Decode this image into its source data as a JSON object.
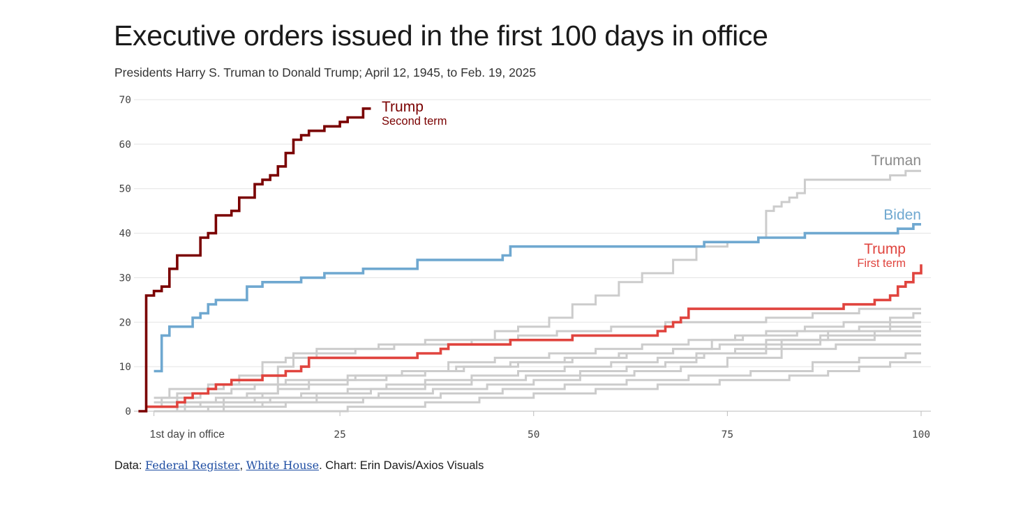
{
  "header": {
    "title": "Executive orders issued in the first 100 days in office",
    "subtitle": "Presidents Harry S. Truman to Donald Trump; April 12, 1945, to Feb. 19, 2025"
  },
  "source": {
    "prefix": "Data: ",
    "link1": "Federal Register",
    "sep": ", ",
    "link2": "White House",
    "suffix": ". Chart: Erin Davis/Axios Visuals"
  },
  "colors": {
    "grid": "#e3e3e3",
    "gray_series": "#cccccc",
    "trump2": "#7a0000",
    "biden": "#6fa8d0",
    "trump1": "#e0443e",
    "truman_label": "#8a8a8a"
  },
  "chart_data": {
    "type": "line",
    "step": true,
    "xlabel": "",
    "ylabel": "",
    "xlim": [
      0,
      100
    ],
    "ylim": [
      0,
      70
    ],
    "x_ticks": [
      {
        "value": 1,
        "label": "1st day in office"
      },
      {
        "value": 25,
        "label": "25"
      },
      {
        "value": 50,
        "label": "50"
      },
      {
        "value": 75,
        "label": "75"
      },
      {
        "value": 100,
        "label": "100"
      }
    ],
    "y_ticks": [
      0,
      10,
      20,
      30,
      40,
      50,
      60,
      70
    ],
    "grid": true,
    "series": [
      {
        "name": "Truman",
        "label_lines": [
          "Truman"
        ],
        "highlight": false,
        "label_color": "#8a8a8a",
        "points": [
          [
            1,
            0
          ],
          [
            4,
            2
          ],
          [
            10,
            3
          ],
          [
            15,
            4
          ],
          [
            17,
            10
          ],
          [
            19,
            13
          ],
          [
            22,
            14
          ],
          [
            28,
            14
          ],
          [
            30,
            15
          ],
          [
            38,
            15
          ],
          [
            42,
            16
          ],
          [
            45,
            18
          ],
          [
            48,
            19
          ],
          [
            52,
            21
          ],
          [
            55,
            24
          ],
          [
            58,
            26
          ],
          [
            61,
            29
          ],
          [
            64,
            31
          ],
          [
            68,
            34
          ],
          [
            71,
            37
          ],
          [
            75,
            38
          ],
          [
            79,
            39
          ],
          [
            80,
            45
          ],
          [
            81,
            46
          ],
          [
            82,
            47
          ],
          [
            83,
            48
          ],
          [
            84,
            49
          ],
          [
            85,
            52
          ],
          [
            88,
            52
          ],
          [
            91,
            52
          ],
          [
            96,
            53
          ],
          [
            98,
            54
          ],
          [
            100,
            54
          ]
        ]
      },
      {
        "name": "Biden",
        "label_lines": [
          "Biden"
        ],
        "highlight": true,
        "label_color": "#6fa8d0",
        "points": [
          [
            1,
            9
          ],
          [
            2,
            17
          ],
          [
            3,
            19
          ],
          [
            6,
            21
          ],
          [
            7,
            22
          ],
          [
            8,
            24
          ],
          [
            9,
            25
          ],
          [
            13,
            28
          ],
          [
            15,
            29
          ],
          [
            20,
            30
          ],
          [
            23,
            31
          ],
          [
            28,
            32
          ],
          [
            35,
            34
          ],
          [
            46,
            35
          ],
          [
            47,
            37
          ],
          [
            60,
            37
          ],
          [
            72,
            38
          ],
          [
            79,
            39
          ],
          [
            85,
            40
          ],
          [
            97,
            41
          ],
          [
            99,
            42
          ],
          [
            100,
            42
          ]
        ]
      },
      {
        "name": "Trump",
        "label_lines": [
          "Trump",
          "First term"
        ],
        "highlight": true,
        "label_color": "#e0443e",
        "points": [
          [
            0,
            1
          ],
          [
            4,
            2
          ],
          [
            5,
            3
          ],
          [
            6,
            4
          ],
          [
            8,
            5
          ],
          [
            9,
            6
          ],
          [
            11,
            7
          ],
          [
            15,
            8
          ],
          [
            18,
            9
          ],
          [
            20,
            10
          ],
          [
            21,
            12
          ],
          [
            33,
            12
          ],
          [
            35,
            13
          ],
          [
            38,
            14
          ],
          [
            39,
            15
          ],
          [
            47,
            16
          ],
          [
            55,
            17
          ],
          [
            66,
            18
          ],
          [
            67,
            19
          ],
          [
            68,
            20
          ],
          [
            69,
            21
          ],
          [
            70,
            23
          ],
          [
            88,
            23
          ],
          [
            90,
            24
          ],
          [
            94,
            25
          ],
          [
            96,
            26
          ],
          [
            97,
            28
          ],
          [
            98,
            29
          ],
          [
            99,
            31
          ],
          [
            100,
            33
          ]
        ]
      },
      {
        "name": "Trump",
        "label_lines": [
          "Trump",
          "Second term"
        ],
        "highlight": true,
        "label_color": "#7a0000",
        "points": [
          [
            -1,
            0
          ],
          [
            0,
            26
          ],
          [
            1,
            27
          ],
          [
            2,
            28
          ],
          [
            3,
            32
          ],
          [
            4,
            35
          ],
          [
            7,
            39
          ],
          [
            8,
            40
          ],
          [
            9,
            44
          ],
          [
            11,
            45
          ],
          [
            12,
            48
          ],
          [
            14,
            51
          ],
          [
            15,
            52
          ],
          [
            16,
            53
          ],
          [
            17,
            55
          ],
          [
            18,
            58
          ],
          [
            19,
            61
          ],
          [
            20,
            62
          ],
          [
            21,
            63
          ],
          [
            23,
            64
          ],
          [
            25,
            65
          ],
          [
            26,
            66
          ],
          [
            28,
            68
          ],
          [
            29,
            68
          ]
        ]
      },
      {
        "name": "",
        "highlight": false,
        "points": [
          [
            1,
            1
          ],
          [
            2,
            3
          ],
          [
            3,
            5
          ],
          [
            7,
            5
          ],
          [
            10,
            6
          ],
          [
            18,
            7
          ],
          [
            26,
            8
          ],
          [
            33,
            9
          ],
          [
            40,
            10
          ],
          [
            48,
            11
          ],
          [
            55,
            12
          ],
          [
            62,
            13
          ],
          [
            68,
            14
          ],
          [
            73,
            16
          ],
          [
            76,
            17
          ],
          [
            80,
            18
          ],
          [
            85,
            19
          ],
          [
            90,
            20
          ],
          [
            100,
            20
          ]
        ]
      },
      {
        "name": "",
        "highlight": false,
        "points": [
          [
            1,
            0
          ],
          [
            5,
            1
          ],
          [
            10,
            2
          ],
          [
            16,
            3
          ],
          [
            22,
            4
          ],
          [
            29,
            5
          ],
          [
            36,
            6
          ],
          [
            42,
            7
          ],
          [
            49,
            8
          ],
          [
            56,
            9
          ],
          [
            62,
            10
          ],
          [
            67,
            11
          ],
          [
            71,
            13
          ],
          [
            76,
            14
          ],
          [
            82,
            16
          ],
          [
            88,
            18
          ],
          [
            96,
            21
          ],
          [
            99,
            22
          ],
          [
            100,
            22
          ]
        ]
      },
      {
        "name": "",
        "highlight": false,
        "points": [
          [
            1,
            1
          ],
          [
            7,
            2
          ],
          [
            14,
            3
          ],
          [
            20,
            4
          ],
          [
            26,
            5
          ],
          [
            31,
            6
          ],
          [
            36,
            7
          ],
          [
            42,
            8
          ],
          [
            48,
            9
          ],
          [
            54,
            10
          ],
          [
            60,
            11
          ],
          [
            66,
            12
          ],
          [
            72,
            13
          ],
          [
            80,
            15
          ],
          [
            87,
            16
          ],
          [
            94,
            17
          ],
          [
            100,
            17
          ]
        ]
      },
      {
        "name": "",
        "highlight": false,
        "points": [
          [
            1,
            2
          ],
          [
            4,
            3
          ],
          [
            7,
            4
          ],
          [
            11,
            5
          ],
          [
            14,
            6
          ],
          [
            21,
            7
          ],
          [
            27,
            8
          ],
          [
            33,
            9
          ],
          [
            39,
            11
          ],
          [
            45,
            12
          ],
          [
            52,
            13
          ],
          [
            58,
            14
          ],
          [
            64,
            15
          ],
          [
            70,
            16
          ],
          [
            77,
            17
          ],
          [
            84,
            18
          ],
          [
            92,
            19
          ],
          [
            100,
            19
          ]
        ]
      },
      {
        "name": "",
        "highlight": false,
        "points": [
          [
            1,
            0
          ],
          [
            8,
            1
          ],
          [
            15,
            2
          ],
          [
            22,
            3
          ],
          [
            30,
            4
          ],
          [
            37,
            5
          ],
          [
            44,
            6
          ],
          [
            50,
            7
          ],
          [
            56,
            8
          ],
          [
            63,
            9
          ],
          [
            69,
            10
          ],
          [
            75,
            12
          ],
          [
            82,
            14
          ],
          [
            89,
            15
          ],
          [
            100,
            15
          ]
        ]
      },
      {
        "name": "",
        "highlight": false,
        "points": [
          [
            1,
            0
          ],
          [
            12,
            0
          ],
          [
            26,
            1
          ],
          [
            36,
            2
          ],
          [
            43,
            3
          ],
          [
            50,
            4
          ],
          [
            58,
            5
          ],
          [
            66,
            6
          ],
          [
            74,
            7
          ],
          [
            83,
            8
          ],
          [
            88,
            9
          ],
          [
            92,
            10
          ],
          [
            96,
            11
          ],
          [
            100,
            11
          ]
        ]
      },
      {
        "name": "",
        "highlight": false,
        "points": [
          [
            1,
            1
          ],
          [
            5,
            2
          ],
          [
            9,
            3
          ],
          [
            13,
            4
          ],
          [
            17,
            5
          ],
          [
            21,
            6
          ],
          [
            26,
            7
          ],
          [
            31,
            8
          ],
          [
            36,
            9
          ],
          [
            41,
            10
          ],
          [
            47,
            11
          ],
          [
            54,
            12
          ],
          [
            61,
            13
          ],
          [
            68,
            14
          ],
          [
            74,
            15
          ],
          [
            80,
            16
          ],
          [
            87,
            17
          ],
          [
            94,
            18
          ],
          [
            100,
            18
          ]
        ]
      },
      {
        "name": "",
        "highlight": false,
        "points": [
          [
            1,
            3
          ],
          [
            4,
            4
          ],
          [
            8,
            6
          ],
          [
            12,
            8
          ],
          [
            15,
            11
          ],
          [
            18,
            12
          ],
          [
            22,
            13
          ],
          [
            27,
            14
          ],
          [
            32,
            15
          ],
          [
            36,
            16
          ],
          [
            42,
            16
          ],
          [
            48,
            17
          ],
          [
            53,
            18
          ],
          [
            60,
            19
          ],
          [
            67,
            20
          ],
          [
            72,
            20
          ],
          [
            80,
            21
          ],
          [
            86,
            22
          ],
          [
            92,
            23
          ],
          [
            100,
            23
          ]
        ]
      },
      {
        "name": "",
        "highlight": false,
        "points": [
          [
            1,
            0
          ],
          [
            10,
            1
          ],
          [
            18,
            2
          ],
          [
            28,
            3
          ],
          [
            38,
            4
          ],
          [
            46,
            5
          ],
          [
            54,
            6
          ],
          [
            62,
            7
          ],
          [
            70,
            8
          ],
          [
            78,
            9
          ],
          [
            86,
            11
          ],
          [
            92,
            12
          ],
          [
            98,
            13
          ],
          [
            100,
            13
          ]
        ]
      }
    ]
  }
}
